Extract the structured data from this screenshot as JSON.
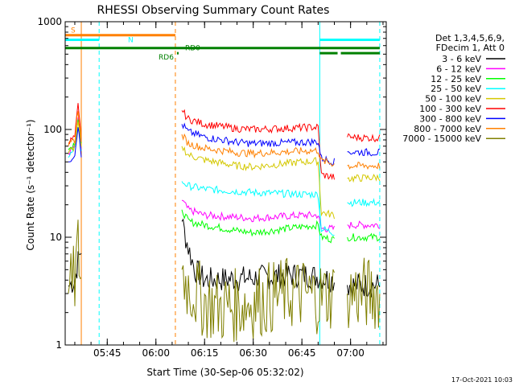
{
  "chart_data": {
    "type": "line",
    "title": "RHESSI Observing Summary Count Rates",
    "xlabel": "Start Time (30-Sep-06 05:32:02)",
    "ylabel": "Count Rate (s⁻¹ detector⁻¹)",
    "y_scale": "log",
    "ylim": [
      1,
      1000
    ],
    "xlim": [
      "05:32:02",
      "07:11:00"
    ],
    "x_ticks": [
      "05:45",
      "06:00",
      "06:15",
      "06:30",
      "06:45",
      "07:00"
    ],
    "y_ticks": [
      "1",
      "10",
      "100",
      "1000"
    ],
    "legend_header": [
      "Det 1,3,4,5,6,9,",
      "FDecim 1, Att 0"
    ],
    "legend_position": "right",
    "grid": false,
    "series": [
      {
        "name": "3 - 6 keV",
        "color": "#000000",
        "points": [
          [
            "05:33",
            3.5
          ],
          [
            "05:35",
            4
          ],
          [
            "05:36",
            6
          ],
          [
            "05:37",
            8
          ],
          [
            "06:07",
            null
          ],
          [
            "06:08",
            14
          ],
          [
            "06:10",
            8
          ],
          [
            "06:12",
            5
          ],
          [
            "06:15",
            4
          ],
          [
            "06:30",
            4.2
          ],
          [
            "06:45",
            4.5
          ],
          [
            "06:50",
            4.3
          ],
          [
            "06:55",
            4
          ],
          [
            "06:58",
            null
          ],
          [
            "06:59",
            3.6
          ],
          [
            "07:09",
            3.6
          ]
        ]
      },
      {
        "name": "6 - 12 keV",
        "color": "#ff00ff",
        "points": [
          [
            "05:33",
            60
          ],
          [
            "05:35",
            70
          ],
          [
            "05:36",
            120
          ],
          [
            "05:37",
            65
          ],
          [
            "06:07",
            null
          ],
          [
            "06:08",
            22
          ],
          [
            "06:10",
            18
          ],
          [
            "06:15",
            16
          ],
          [
            "06:30",
            15
          ],
          [
            "06:45",
            16
          ],
          [
            "06:50",
            16
          ],
          [
            "06:51",
            12
          ],
          [
            "06:55",
            12
          ],
          [
            "06:58",
            null
          ],
          [
            "06:59",
            13
          ],
          [
            "07:09",
            13
          ]
        ]
      },
      {
        "name": "12 - 25 keV",
        "color": "#00ff00",
        "points": [
          [
            "05:33",
            65
          ],
          [
            "05:35",
            75
          ],
          [
            "05:36",
            125
          ],
          [
            "05:37",
            70
          ],
          [
            "06:07",
            null
          ],
          [
            "06:08",
            18
          ],
          [
            "06:10",
            14
          ],
          [
            "06:15",
            13
          ],
          [
            "06:25",
            11.5
          ],
          [
            "06:30",
            11
          ],
          [
            "06:45",
            12.5
          ],
          [
            "06:50",
            13
          ],
          [
            "06:51",
            10
          ],
          [
            "06:55",
            9.5
          ],
          [
            "06:58",
            null
          ],
          [
            "06:59",
            10
          ],
          [
            "07:09",
            10
          ]
        ]
      },
      {
        "name": "25 - 50 keV",
        "color": "#00ffff",
        "points": [
          [
            "05:33",
            55
          ],
          [
            "05:35",
            65
          ],
          [
            "05:36",
            110
          ],
          [
            "05:37",
            60
          ],
          [
            "06:07",
            null
          ],
          [
            "06:08",
            33
          ],
          [
            "06:10",
            30
          ],
          [
            "06:15",
            28
          ],
          [
            "06:30",
            26
          ],
          [
            "06:45",
            25
          ],
          [
            "06:50",
            25
          ],
          [
            "06:51",
            12
          ],
          [
            "06:55",
            11
          ],
          [
            "06:58",
            null
          ],
          [
            "06:59",
            21
          ],
          [
            "07:09",
            21
          ]
        ]
      },
      {
        "name": "50 - 100 keV",
        "color": "#d4c800",
        "points": [
          [
            "05:33",
            60
          ],
          [
            "05:35",
            70
          ],
          [
            "05:36",
            115
          ],
          [
            "05:37",
            65
          ],
          [
            "06:07",
            null
          ],
          [
            "06:08",
            70
          ],
          [
            "06:10",
            58
          ],
          [
            "06:15",
            52
          ],
          [
            "06:25",
            46
          ],
          [
            "06:30",
            45
          ],
          [
            "06:45",
            50
          ],
          [
            "06:50",
            51
          ],
          [
            "06:51",
            17
          ],
          [
            "06:55",
            16
          ],
          [
            "06:58",
            null
          ],
          [
            "06:59",
            35
          ],
          [
            "07:09",
            36
          ]
        ]
      },
      {
        "name": "100 - 300 keV",
        "color": "#ff0000",
        "points": [
          [
            "05:33",
            75
          ],
          [
            "05:35",
            85
          ],
          [
            "05:36",
            165
          ],
          [
            "05:37",
            80
          ],
          [
            "06:07",
            null
          ],
          [
            "06:08",
            150
          ],
          [
            "06:10",
            125
          ],
          [
            "06:15",
            112
          ],
          [
            "06:25",
            102
          ],
          [
            "06:30",
            100
          ],
          [
            "06:45",
            104
          ],
          [
            "06:50",
            105
          ],
          [
            "06:51",
            38
          ],
          [
            "06:55",
            36
          ],
          [
            "06:58",
            null
          ],
          [
            "06:59",
            85
          ],
          [
            "07:09",
            83
          ]
        ]
      },
      {
        "name": "300 - 800 keV",
        "color": "#0000ff",
        "points": [
          [
            "05:33",
            50
          ],
          [
            "05:35",
            60
          ],
          [
            "05:36",
            110
          ],
          [
            "05:37",
            55
          ],
          [
            "06:07",
            null
          ],
          [
            "06:08",
            112
          ],
          [
            "06:10",
            95
          ],
          [
            "06:15",
            85
          ],
          [
            "06:25",
            76
          ],
          [
            "06:30",
            74
          ],
          [
            "06:45",
            76
          ],
          [
            "06:50",
            77
          ],
          [
            "06:51",
            54
          ],
          [
            "06:55",
            50
          ],
          [
            "06:58",
            null
          ],
          [
            "06:59",
            62
          ],
          [
            "07:09",
            61
          ]
        ]
      },
      {
        "name": "800 - 7000 keV",
        "color": "#ff8000",
        "points": [
          [
            "05:33",
            70
          ],
          [
            "05:35",
            80
          ],
          [
            "05:36",
            155
          ],
          [
            "05:37",
            75
          ],
          [
            "06:07",
            null
          ],
          [
            "06:08",
            90
          ],
          [
            "06:10",
            74
          ],
          [
            "06:15",
            67
          ],
          [
            "06:25",
            61
          ],
          [
            "06:30",
            60
          ],
          [
            "06:45",
            63
          ],
          [
            "06:50",
            64
          ],
          [
            "06:51",
            51
          ],
          [
            "06:55",
            48
          ],
          [
            "06:58",
            null
          ],
          [
            "06:59",
            46
          ],
          [
            "07:09",
            46
          ]
        ]
      },
      {
        "name": "7000 - 15000 keV",
        "color": "#808000",
        "points": [
          [
            "05:33",
            3
          ],
          [
            "05:35",
            4
          ],
          [
            "05:36",
            8
          ],
          [
            "05:37",
            4
          ],
          [
            "06:07",
            null
          ],
          [
            "06:08",
            5
          ],
          [
            "06:10",
            3.5
          ],
          [
            "06:15",
            2.5
          ],
          [
            "06:20",
            2.2
          ],
          [
            "06:30",
            2.5
          ],
          [
            "06:40",
            3
          ],
          [
            "06:45",
            3
          ],
          [
            "06:50",
            2.8
          ],
          [
            "06:55",
            3
          ],
          [
            "06:58",
            null
          ],
          [
            "06:59",
            3
          ],
          [
            "07:09",
            3
          ]
        ]
      }
    ],
    "vertical_markers": [
      {
        "time": "05:32:02",
        "color": "#00ffff",
        "style": "solid"
      },
      {
        "time": "05:37:00",
        "color": "#ff8000",
        "style": "solid"
      },
      {
        "time": "05:42:30",
        "color": "#00ffff",
        "style": "dashed"
      },
      {
        "time": "06:06:00",
        "color": "#ff8000",
        "style": "dashed"
      },
      {
        "time": "06:50:30",
        "color": "#00ffff",
        "style": "solid"
      },
      {
        "time": "07:09:00",
        "color": "#00ffff",
        "style": "dashed"
      }
    ],
    "flag_bars": [
      {
        "label": "S",
        "color": "#ff8000",
        "y": 750,
        "segments": [
          [
            "05:32:02",
            "06:06:00"
          ]
        ]
      },
      {
        "label": "N",
        "color": "#00ffff",
        "y": 680,
        "segments": [
          [
            "05:32:02",
            "05:42:30"
          ],
          [
            "06:50:30",
            "07:09:00"
          ]
        ]
      },
      {
        "label": "RD0",
        "color": "#008000",
        "y": 570,
        "segments": [
          [
            "05:32:02",
            "07:09:00"
          ]
        ]
      },
      {
        "label": "RD6",
        "color": "#008000",
        "y": 510,
        "segments": [
          [
            "06:06:30",
            "06:07:00"
          ],
          [
            "06:50:30",
            "06:56:00"
          ],
          [
            "06:57:00",
            "07:09:00"
          ]
        ]
      }
    ]
  },
  "footer": {
    "timestamp": "17-Oct-2021 10:03"
  }
}
